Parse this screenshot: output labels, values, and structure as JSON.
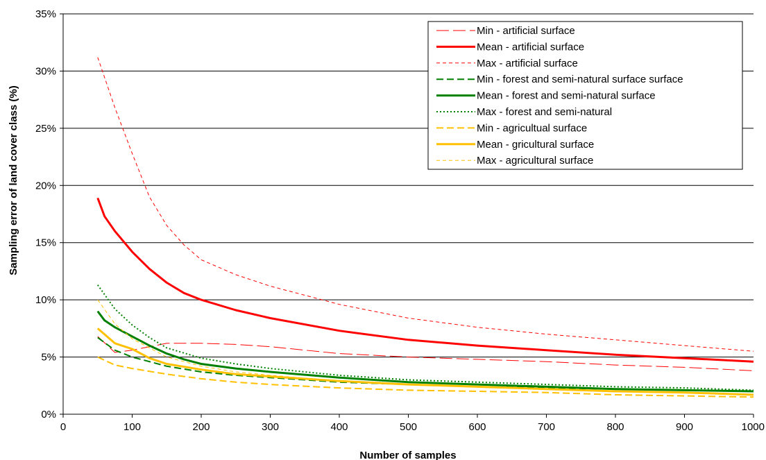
{
  "chart_data": {
    "type": "line",
    "title": "",
    "xlabel": "Number of samples",
    "ylabel": "Sampling error of land cover class (%)",
    "xlim": [
      0,
      1000
    ],
    "ylim": [
      0,
      35
    ],
    "xticks": [
      0,
      100,
      200,
      300,
      400,
      500,
      600,
      700,
      800,
      900,
      1000
    ],
    "yticks": [
      0,
      5,
      10,
      15,
      20,
      25,
      30,
      35
    ],
    "ytick_labels": [
      "0%",
      "5%",
      "10%",
      "15%",
      "20%",
      "25%",
      "30%",
      "35%"
    ],
    "grid": "horizontal",
    "legend_position": "top-right",
    "series": [
      {
        "name": "Min - artificial surface",
        "color": "#ff0000",
        "style": "longdash",
        "width": 1,
        "x": [
          50,
          75,
          100,
          150,
          200,
          250,
          300,
          400,
          500,
          600,
          700,
          800,
          900,
          1000
        ],
        "y": [
          6.8,
          5.4,
          5.6,
          6.2,
          6.2,
          6.1,
          5.9,
          5.3,
          5.0,
          4.8,
          4.6,
          4.3,
          4.1,
          3.8
        ]
      },
      {
        "name": "Mean - artificial surface",
        "color": "#ff0000",
        "style": "solid",
        "width": 3,
        "x": [
          50,
          60,
          75,
          100,
          125,
          150,
          175,
          200,
          250,
          300,
          400,
          500,
          600,
          700,
          800,
          900,
          1000
        ],
        "y": [
          18.9,
          17.3,
          16.0,
          14.2,
          12.7,
          11.5,
          10.6,
          10.0,
          9.1,
          8.4,
          7.3,
          6.5,
          6.0,
          5.6,
          5.2,
          4.9,
          4.6
        ]
      },
      {
        "name": "Max - artificial surface",
        "color": "#ff0000",
        "style": "shortdash",
        "width": 1,
        "x": [
          50,
          75,
          100,
          125,
          150,
          175,
          200,
          250,
          300,
          350,
          400,
          500,
          600,
          700,
          800,
          900,
          1000
        ],
        "y": [
          31.2,
          26.8,
          22.8,
          19.0,
          16.5,
          14.8,
          13.5,
          12.2,
          11.2,
          10.4,
          9.6,
          8.4,
          7.6,
          7.0,
          6.5,
          6.0,
          5.5
        ]
      },
      {
        "name": "Min - forest and semi-natural surface surface",
        "color": "#008000",
        "style": "dash",
        "width": 2,
        "x": [
          50,
          75,
          100,
          150,
          200,
          250,
          300,
          400,
          500,
          600,
          700,
          800,
          900,
          1000
        ],
        "y": [
          6.7,
          5.6,
          5.0,
          4.2,
          3.7,
          3.4,
          3.2,
          2.8,
          2.6,
          2.4,
          2.3,
          2.2,
          2.1,
          2.0
        ]
      },
      {
        "name": "Mean - forest and semi-natural surface",
        "color": "#008000",
        "style": "solid",
        "width": 3,
        "x": [
          50,
          60,
          75,
          100,
          125,
          150,
          175,
          200,
          250,
          300,
          400,
          500,
          600,
          700,
          800,
          900,
          1000
        ],
        "y": [
          9.0,
          8.2,
          7.6,
          6.8,
          6.0,
          5.3,
          4.8,
          4.4,
          4.0,
          3.7,
          3.2,
          2.8,
          2.6,
          2.4,
          2.2,
          2.1,
          2.0
        ]
      },
      {
        "name": "Max - forest and semi-natural",
        "color": "#008000",
        "style": "dot",
        "width": 2,
        "x": [
          50,
          75,
          100,
          125,
          150,
          200,
          250,
          300,
          400,
          500,
          600,
          700,
          800,
          900,
          1000
        ],
        "y": [
          11.3,
          9.2,
          7.8,
          6.7,
          5.8,
          4.9,
          4.4,
          4.0,
          3.4,
          3.0,
          2.8,
          2.6,
          2.4,
          2.3,
          2.1
        ]
      },
      {
        "name": "Min - agricultual surface",
        "color": "#ffc000",
        "style": "dash",
        "width": 2,
        "x": [
          50,
          75,
          100,
          150,
          200,
          250,
          300,
          400,
          500,
          600,
          700,
          800,
          900,
          1000
        ],
        "y": [
          5.0,
          4.3,
          4.0,
          3.5,
          3.1,
          2.8,
          2.6,
          2.3,
          2.1,
          2.0,
          1.9,
          1.7,
          1.6,
          1.5
        ]
      },
      {
        "name": "Mean - gricultural surface",
        "color": "#ffc000",
        "style": "solid",
        "width": 3,
        "x": [
          50,
          75,
          100,
          125,
          150,
          200,
          250,
          300,
          400,
          500,
          600,
          700,
          800,
          900,
          1000
        ],
        "y": [
          7.5,
          6.2,
          5.7,
          4.9,
          4.4,
          3.9,
          3.5,
          3.3,
          2.9,
          2.6,
          2.4,
          2.2,
          2.0,
          1.9,
          1.7
        ]
      },
      {
        "name": "Max - agricultural surface",
        "color": "#ffc000",
        "style": "shortdash",
        "width": 1,
        "x": [
          50,
          75,
          100,
          150,
          200,
          250,
          300,
          400,
          500,
          600,
          700,
          800,
          900,
          1000
        ],
        "y": [
          10.0,
          7.9,
          6.6,
          5.0,
          4.2,
          3.7,
          3.4,
          2.9,
          2.6,
          2.4,
          2.2,
          2.0,
          1.9,
          1.7
        ]
      }
    ]
  }
}
